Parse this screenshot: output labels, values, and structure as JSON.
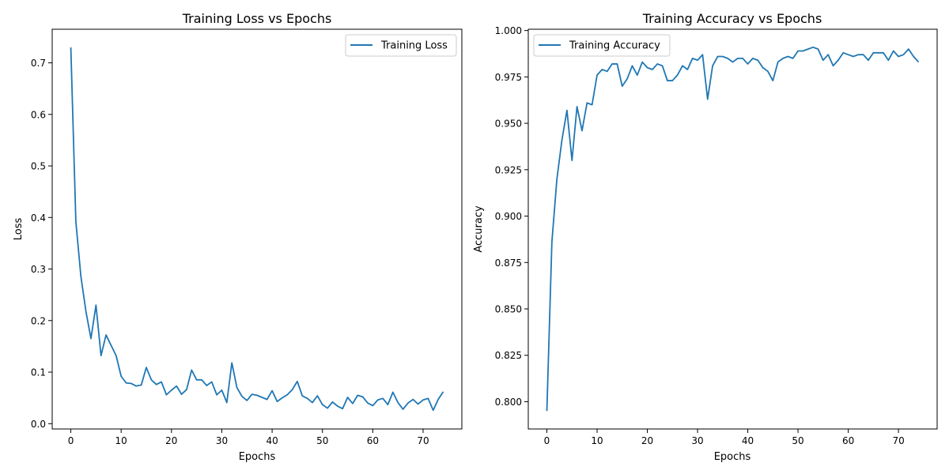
{
  "chart_data": [
    {
      "type": "line",
      "title": "Training Loss vs Epochs",
      "xlabel": "Epochs",
      "ylabel": "Loss",
      "xlim": [
        -3.7,
        77.7
      ],
      "ylim": [
        -0.0103,
        0.7652
      ],
      "xticks": [
        0,
        10,
        20,
        30,
        40,
        50,
        60,
        70
      ],
      "xtick_labels": [
        "0",
        "10",
        "20",
        "30",
        "40",
        "50",
        "60",
        "70"
      ],
      "yticks": [
        0.0,
        0.1,
        0.2,
        0.3,
        0.4,
        0.5,
        0.6,
        0.7
      ],
      "ytick_labels": [
        "0.0",
        "0.1",
        "0.2",
        "0.3",
        "0.4",
        "0.5",
        "0.6",
        "0.7"
      ],
      "grid": false,
      "legend": {
        "position": "top-right",
        "entries": [
          "Training Loss"
        ]
      },
      "series": [
        {
          "name": "Training Loss",
          "color": "#1f77b4",
          "x": [
            0,
            1,
            2,
            3,
            4,
            5,
            6,
            7,
            8,
            9,
            10,
            11,
            12,
            13,
            14,
            15,
            16,
            17,
            18,
            19,
            20,
            21,
            22,
            23,
            24,
            25,
            26,
            27,
            28,
            29,
            30,
            31,
            32,
            33,
            34,
            35,
            36,
            37,
            38,
            39,
            40,
            41,
            42,
            43,
            44,
            45,
            46,
            47,
            48,
            49,
            50,
            51,
            52,
            53,
            54,
            55,
            56,
            57,
            58,
            59,
            60,
            61,
            62,
            63,
            64,
            65,
            66,
            67,
            68,
            69,
            70,
            71,
            72,
            73,
            74
          ],
          "values": [
            0.73,
            0.392,
            0.286,
            0.218,
            0.165,
            0.23,
            0.132,
            0.172,
            0.152,
            0.132,
            0.092,
            0.079,
            0.078,
            0.073,
            0.075,
            0.109,
            0.085,
            0.076,
            0.081,
            0.056,
            0.065,
            0.073,
            0.057,
            0.066,
            0.104,
            0.085,
            0.085,
            0.074,
            0.081,
            0.056,
            0.065,
            0.041,
            0.118,
            0.07,
            0.053,
            0.045,
            0.057,
            0.055,
            0.051,
            0.047,
            0.064,
            0.043,
            0.05,
            0.056,
            0.066,
            0.082,
            0.054,
            0.049,
            0.041,
            0.054,
            0.037,
            0.03,
            0.042,
            0.034,
            0.029,
            0.051,
            0.039,
            0.055,
            0.052,
            0.04,
            0.035,
            0.046,
            0.049,
            0.037,
            0.061,
            0.041,
            0.028,
            0.04,
            0.047,
            0.038,
            0.046,
            0.049,
            0.026,
            0.047,
            0.062
          ]
        }
      ]
    },
    {
      "type": "line",
      "title": "Training Accuracy vs Epochs",
      "xlabel": "Epochs",
      "ylabel": "Accuracy",
      "xlim": [
        -3.7,
        77.7
      ],
      "ylim": [
        0.7853,
        1.0007
      ],
      "xticks": [
        0,
        10,
        20,
        30,
        40,
        50,
        60,
        70
      ],
      "xtick_labels": [
        "0",
        "10",
        "20",
        "30",
        "40",
        "50",
        "60",
        "70"
      ],
      "yticks": [
        0.8,
        0.825,
        0.85,
        0.875,
        0.9,
        0.925,
        0.95,
        0.975,
        1.0
      ],
      "ytick_labels": [
        "0.800",
        "0.825",
        "0.850",
        "0.875",
        "0.900",
        "0.925",
        "0.950",
        "0.975",
        "1.000"
      ],
      "grid": false,
      "legend": {
        "position": "top-left",
        "entries": [
          "Training Accuracy"
        ]
      },
      "series": [
        {
          "name": "Training Accuracy",
          "color": "#1f77b4",
          "x": [
            0,
            1,
            2,
            3,
            4,
            5,
            6,
            7,
            8,
            9,
            10,
            11,
            12,
            13,
            14,
            15,
            16,
            17,
            18,
            19,
            20,
            21,
            22,
            23,
            24,
            25,
            26,
            27,
            28,
            29,
            30,
            31,
            32,
            33,
            34,
            35,
            36,
            37,
            38,
            39,
            40,
            41,
            42,
            43,
            44,
            45,
            46,
            47,
            48,
            49,
            50,
            51,
            52,
            53,
            54,
            55,
            56,
            57,
            58,
            59,
            60,
            61,
            62,
            63,
            64,
            65,
            66,
            67,
            68,
            69,
            70,
            71,
            72,
            73,
            74
          ],
          "values": [
            0.795,
            0.886,
            0.92,
            0.941,
            0.957,
            0.93,
            0.959,
            0.946,
            0.961,
            0.96,
            0.976,
            0.979,
            0.978,
            0.982,
            0.982,
            0.97,
            0.974,
            0.981,
            0.976,
            0.983,
            0.98,
            0.979,
            0.982,
            0.981,
            0.973,
            0.973,
            0.976,
            0.981,
            0.979,
            0.985,
            0.984,
            0.987,
            0.963,
            0.981,
            0.986,
            0.986,
            0.985,
            0.983,
            0.985,
            0.985,
            0.982,
            0.985,
            0.984,
            0.98,
            0.978,
            0.973,
            0.983,
            0.985,
            0.986,
            0.985,
            0.989,
            0.989,
            0.99,
            0.991,
            0.99,
            0.984,
            0.987,
            0.981,
            0.984,
            0.988,
            0.987,
            0.986,
            0.987,
            0.987,
            0.984,
            0.988,
            0.988,
            0.988,
            0.984,
            0.989,
            0.986,
            0.987,
            0.99,
            0.986,
            0.983
          ]
        }
      ]
    }
  ]
}
